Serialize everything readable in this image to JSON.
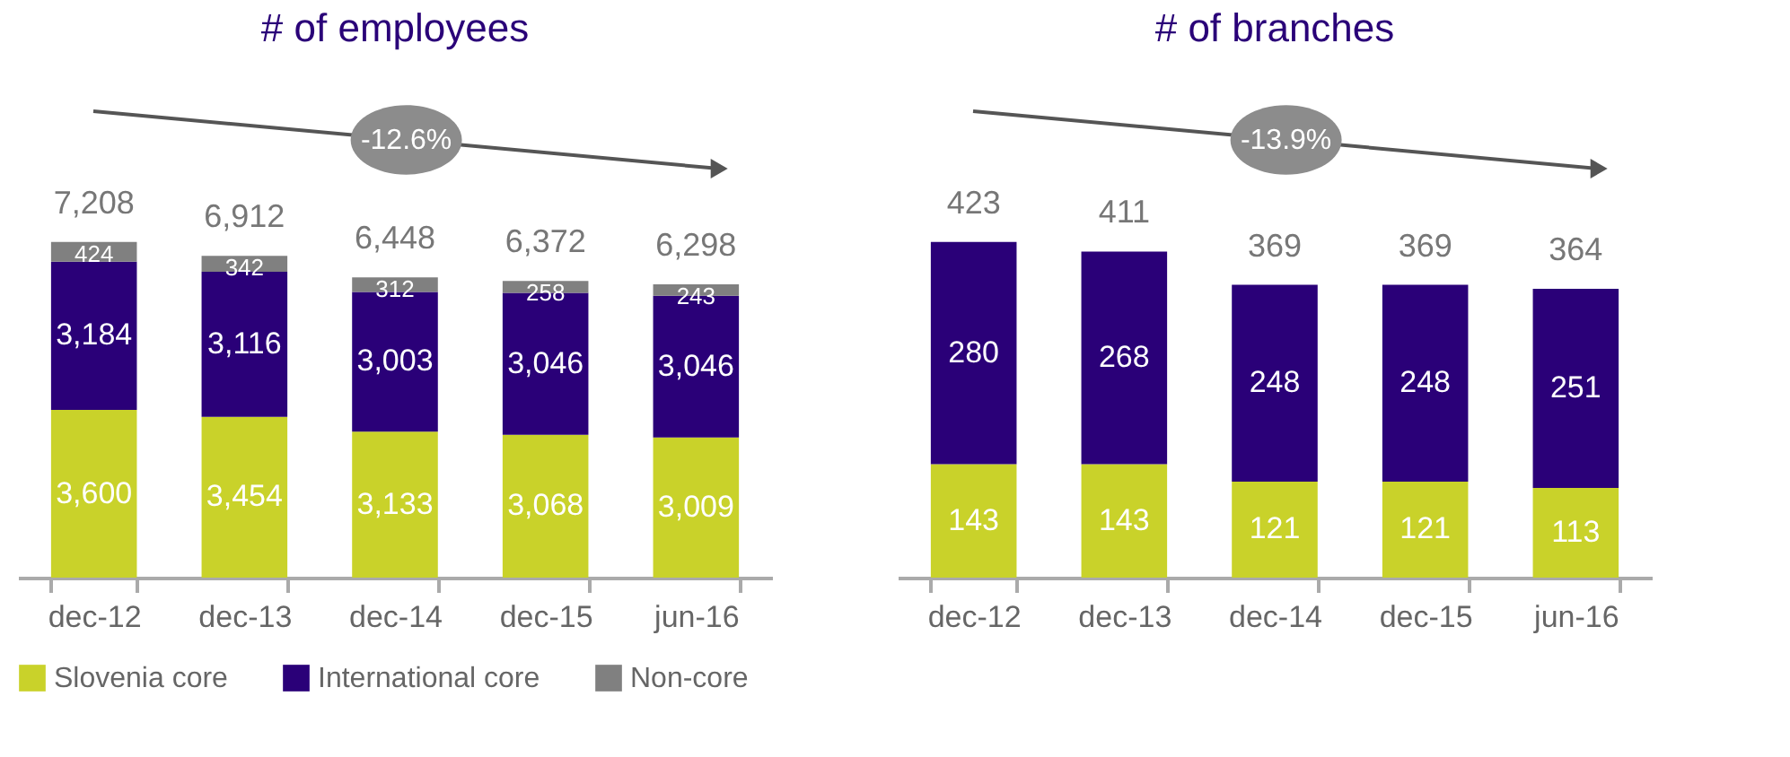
{
  "chart_data": [
    {
      "type": "bar",
      "title": "# of employees",
      "stacked": true,
      "data_labels": true,
      "legend": "bottom",
      "annotations": [
        "-12.6%"
      ],
      "categories": [
        "dec-12",
        "dec-13",
        "dec-14",
        "dec-15",
        "jun-16"
      ],
      "series": [
        {
          "name": "Slovenia core",
          "color": "#c9d22a",
          "values": [
            3600,
            3454,
            3133,
            3068,
            3009
          ],
          "value_labels": [
            "3,600",
            "3,454",
            "3,133",
            "3,068",
            "3,009"
          ]
        },
        {
          "name": "International core",
          "color": "#2a0078",
          "values": [
            3184,
            3116,
            3003,
            3046,
            3046
          ],
          "value_labels": [
            "3,184",
            "3,116",
            "3,003",
            "3,046",
            "3,046"
          ]
        },
        {
          "name": "Non-core",
          "color": "#808080",
          "values": [
            424,
            342,
            312,
            258,
            243
          ],
          "value_labels": [
            "424",
            "342",
            "312",
            "258",
            "243"
          ]
        }
      ],
      "totals": [
        "7,208",
        "6,912",
        "6,448",
        "6,372",
        "6,298"
      ]
    },
    {
      "type": "bar",
      "title": "# of branches",
      "stacked": true,
      "data_labels": true,
      "annotations": [
        "-13.9%"
      ],
      "categories": [
        "dec-12",
        "dec-13",
        "dec-14",
        "dec-15",
        "jun-16"
      ],
      "series": [
        {
          "name": "Slovenia core",
          "color": "#c9d22a",
          "values": [
            143,
            143,
            121,
            121,
            113
          ]
        },
        {
          "name": "International core",
          "color": "#2a0078",
          "values": [
            280,
            268,
            248,
            248,
            251
          ]
        }
      ],
      "totals": [
        "423",
        "411",
        "369",
        "369",
        "364"
      ]
    }
  ]
}
